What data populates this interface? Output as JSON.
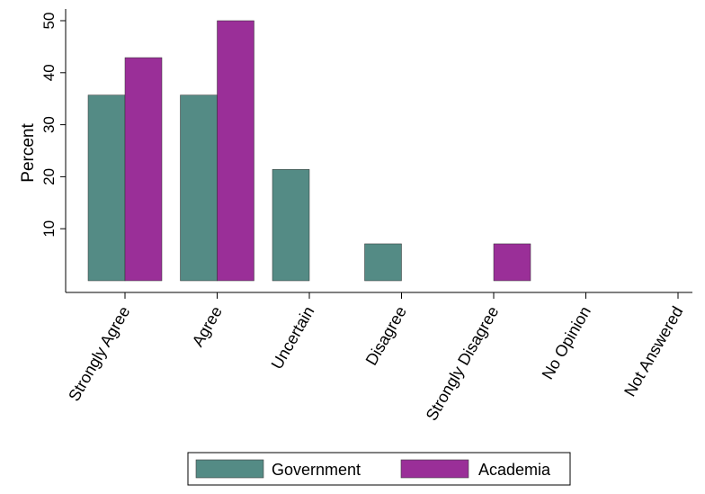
{
  "chart_data": {
    "type": "bar",
    "title": "",
    "xlabel": "",
    "ylabel": "Percent",
    "ylim": [
      0,
      52
    ],
    "yticks": [
      10,
      20,
      30,
      40,
      50
    ],
    "categories": [
      "Strongly Agree",
      "Agree",
      "Uncertain",
      "Disagree",
      "Strongly Disagree",
      "No Opinion",
      "Not Answered"
    ],
    "series": [
      {
        "name": "Government",
        "color": "#548b85",
        "values": [
          35.7,
          35.7,
          21.4,
          7.1,
          0,
          0,
          0
        ]
      },
      {
        "name": "Academia",
        "color": "#9a2f98",
        "values": [
          42.9,
          50.0,
          0,
          0,
          7.1,
          0,
          0
        ]
      }
    ],
    "grid": false,
    "legend_position": "bottom"
  }
}
